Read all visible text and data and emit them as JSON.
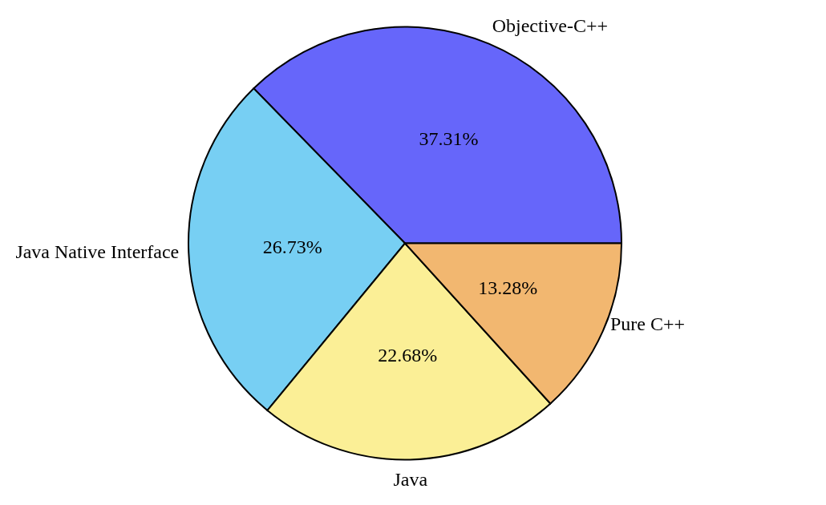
{
  "chart_data": {
    "type": "pie",
    "categories": [
      "Objective-C++",
      "Java Native Interface",
      "Java",
      "Pure C++"
    ],
    "values": [
      37.31,
      26.73,
      22.68,
      13.28
    ],
    "colors": [
      "#6666fa",
      "#77cff3",
      "#fbef96",
      "#f2b770"
    ],
    "value_labels": [
      "37.31%",
      "26.73%",
      "22.68%",
      "13.28%"
    ],
    "legend": false
  }
}
